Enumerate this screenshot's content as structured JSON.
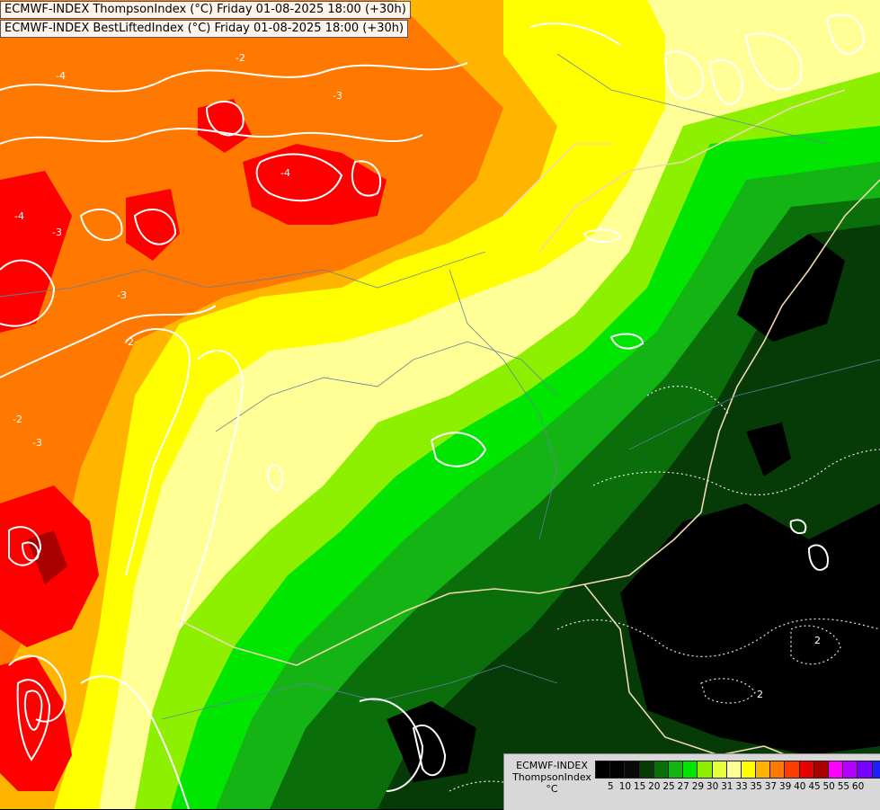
{
  "titles": {
    "line1": "ECMWF-INDEX ThompsonIndex (°C) Friday 01-08-2025 18:00 (+30h)",
    "line2": "ECMWF-INDEX BestLiftedIndex (°C) Friday 01-08-2025 18:00 (+30h)"
  },
  "legend": {
    "line1": "ECMWF-INDEX",
    "line2": "ThompsonIndex",
    "line3": "°C",
    "colors": [
      "#000000",
      "#020202",
      "#0a0a0a",
      "#063a06",
      "#0a6e0a",
      "#14b414",
      "#00e600",
      "#8cf000",
      "#e6ff3c",
      "#ffff96",
      "#ffff00",
      "#ffb400",
      "#ff7800",
      "#ff3c00",
      "#e60000",
      "#aa0000",
      "#ff00ff",
      "#b400ff",
      "#7800ff",
      "#1e1eff"
    ],
    "ticks": [
      "5",
      "10",
      "15",
      "20",
      "25",
      "27",
      "29",
      "30",
      "31",
      "33",
      "35",
      "37",
      "39",
      "40",
      "45",
      "50",
      "55",
      "60"
    ]
  },
  "contour_labels": [
    "-4",
    "-3",
    "-2",
    "-4",
    "-3",
    "-4",
    "-3",
    "-2",
    "-3",
    "-2",
    "2",
    "2",
    "-2"
  ],
  "colors": {
    "dark_green": "#0a4a0a",
    "green": "#14b414",
    "bright_green": "#00e600",
    "yellow": "#ffff00",
    "orange": "#ff7800",
    "red": "#ff0000",
    "border": "#f0d8b0",
    "contour": "#ffffff"
  }
}
